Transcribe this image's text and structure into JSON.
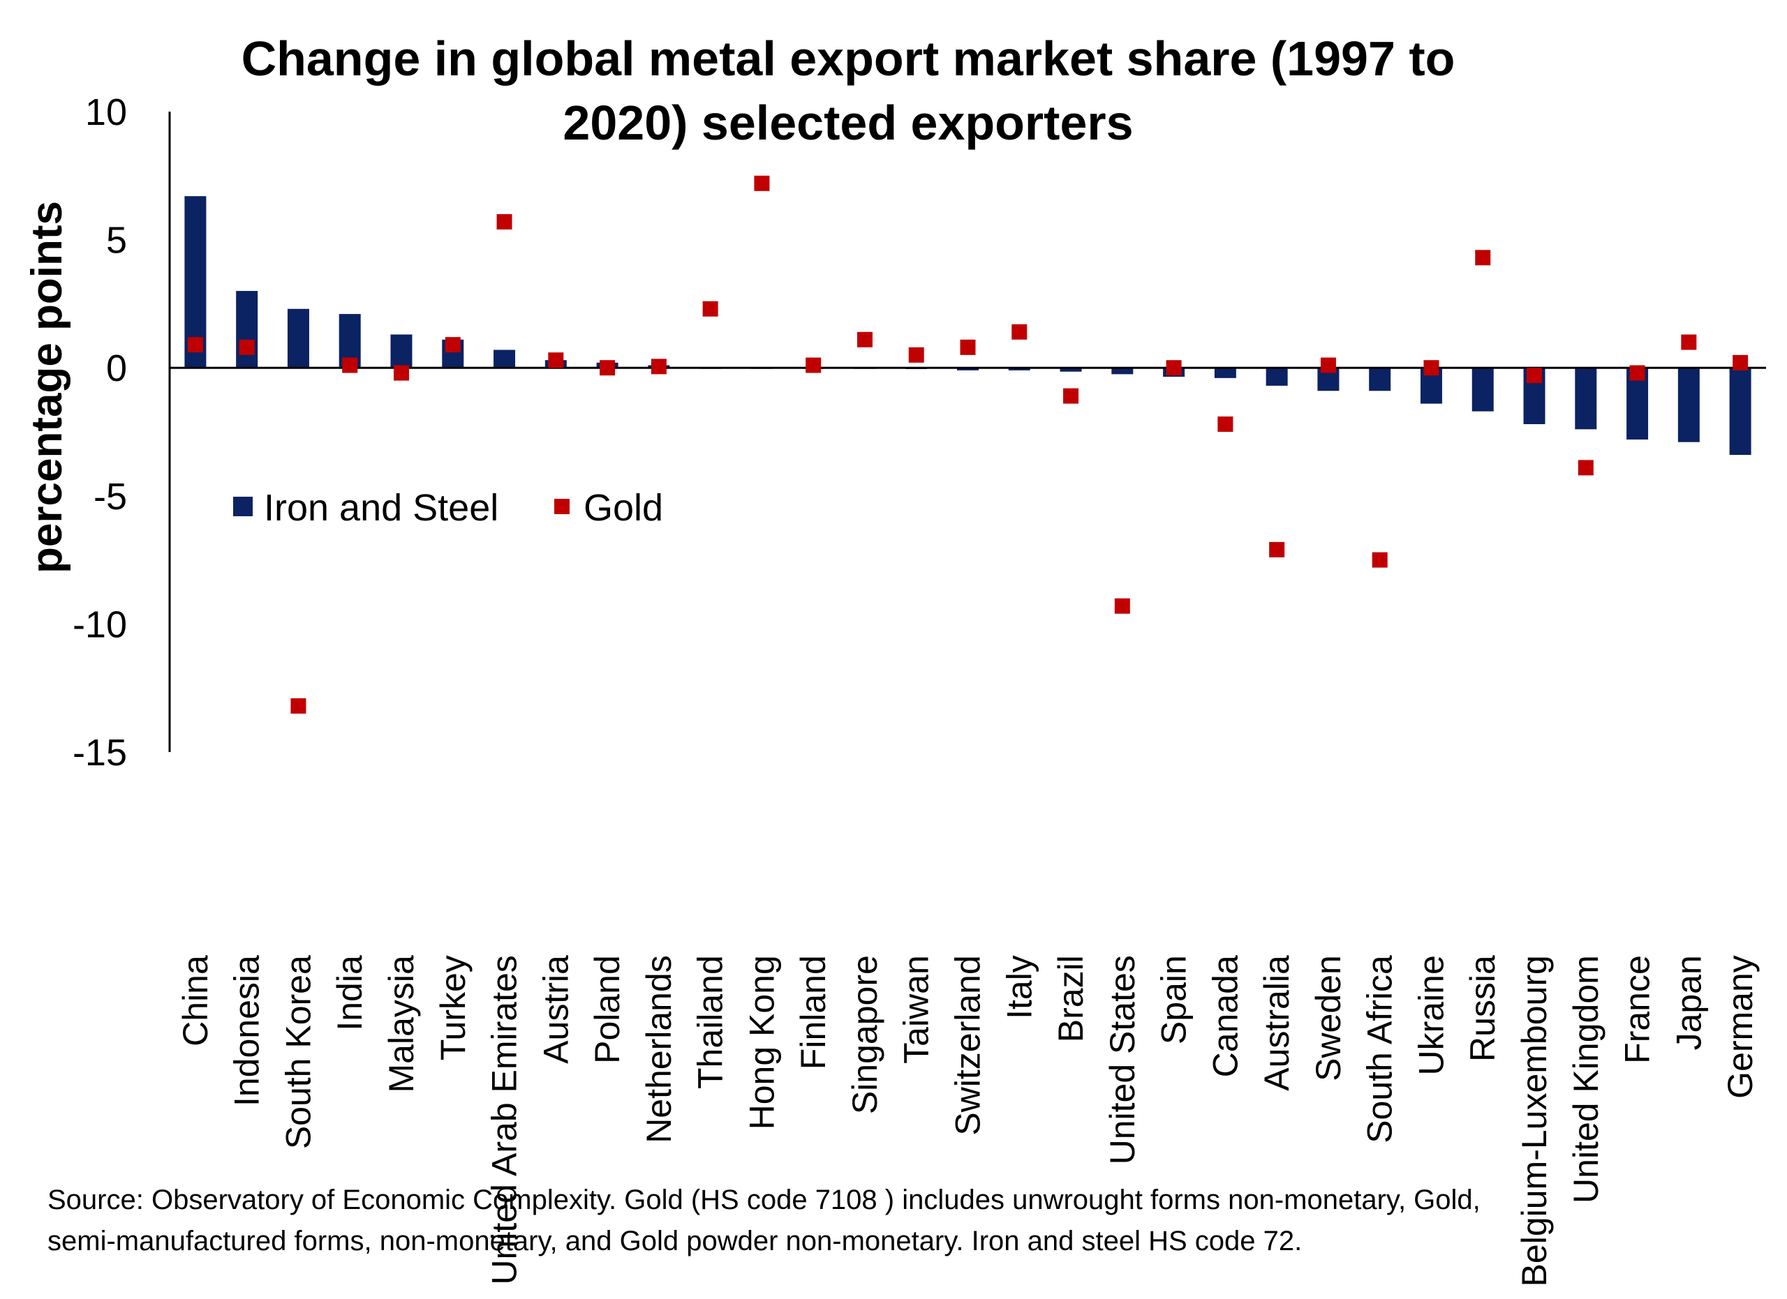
{
  "chart_data": {
    "type": "bar",
    "title_lines": [
      "Change in global metal export market share (1997 to",
      "2020) selected exporters"
    ],
    "ylabel": "percentage points",
    "xlabel": "",
    "ylim": [
      -15,
      10
    ],
    "yticks": [
      10,
      5,
      0,
      -5,
      -10,
      -15
    ],
    "grid": false,
    "legend_position": "middle-left",
    "categories": [
      "China",
      "Indonesia",
      "South Korea",
      "India",
      "Malaysia",
      "Turkey",
      "United Arab Emirates",
      "Austria",
      "Poland",
      "Netherlands",
      "Thailand",
      "Hong Kong",
      "Finland",
      "Singapore",
      "Taiwan",
      "Switzerland",
      "Italy",
      "Brazil",
      "United States",
      "Spain",
      "Canada",
      "Australia",
      "Sweden",
      "South Africa",
      "Ukraine",
      "Russia",
      "Belgium-Luxembourg",
      "United Kingdom",
      "France",
      "Japan",
      "Germany"
    ],
    "series": [
      {
        "name": "Iron and Steel",
        "mark": "bar",
        "color": "#0b2263",
        "values": [
          6.7,
          3.0,
          2.3,
          2.1,
          1.3,
          1.1,
          0.7,
          0.3,
          0.2,
          0.1,
          0.0,
          0.0,
          0.0,
          0.0,
          -0.05,
          -0.1,
          -0.1,
          -0.15,
          -0.25,
          -0.35,
          -0.4,
          -0.7,
          -0.9,
          -0.9,
          -1.4,
          -1.7,
          -2.2,
          -2.4,
          -2.8,
          -2.9,
          -3.4
        ]
      },
      {
        "name": "Gold",
        "mark": "square",
        "color": "#c00000",
        "values": [
          0.9,
          0.8,
          -13.2,
          0.1,
          -0.2,
          0.9,
          5.7,
          0.3,
          0.0,
          0.05,
          2.3,
          7.2,
          0.1,
          1.1,
          0.5,
          0.8,
          1.4,
          -1.1,
          -9.3,
          0.0,
          -2.2,
          -7.1,
          0.1,
          -7.5,
          0.0,
          4.3,
          -0.3,
          -3.9,
          -0.2,
          1.0,
          0.2
        ]
      }
    ],
    "source_lines": [
      "Source: Observatory of Economic Complexity. Gold (HS code 7108 ) includes unwrought forms non-monetary, Gold,",
      "semi-manufactured forms, non-monetary, and Gold powder non-monetary. Iron and steel HS code 72."
    ]
  }
}
